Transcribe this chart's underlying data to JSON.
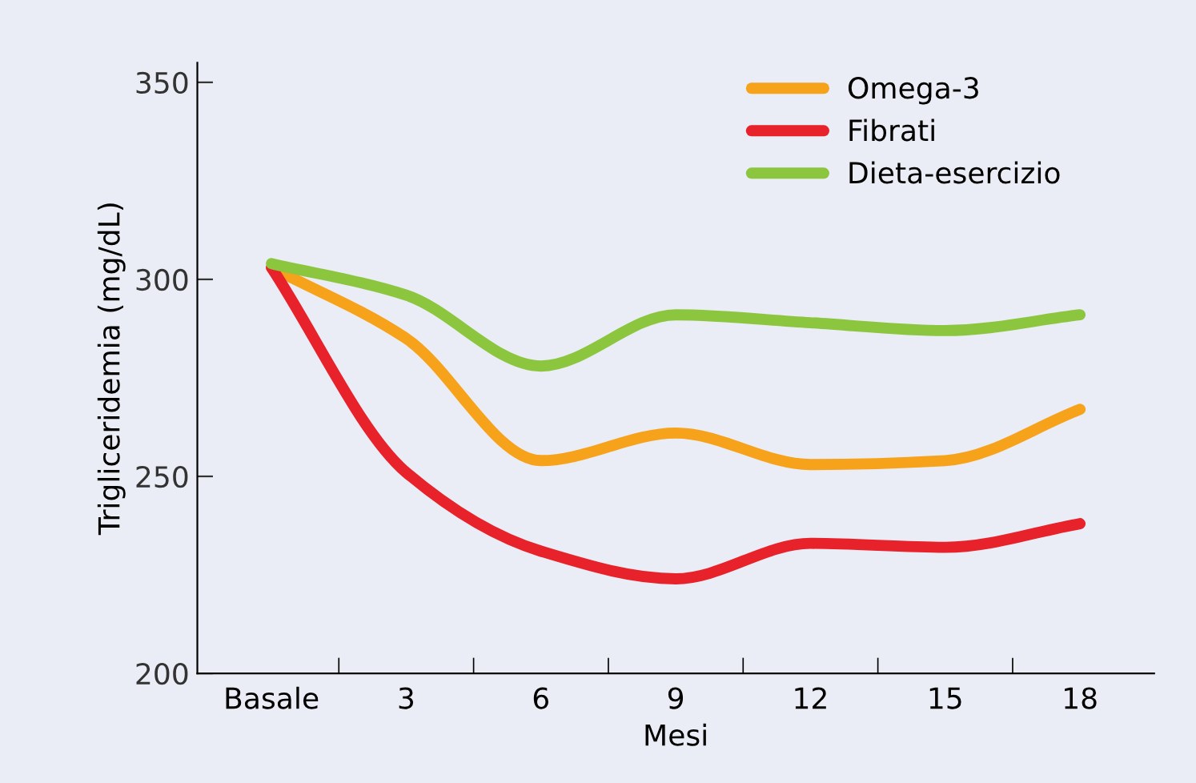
{
  "chart_data": {
    "type": "line",
    "xlabel": "Mesi",
    "ylabel": "Trigliceridemia (mg/dL)",
    "categories": [
      "Basale",
      "3",
      "6",
      "9",
      "12",
      "15",
      "18"
    ],
    "series": [
      {
        "name": "Omega-3",
        "color": "#f7a21b",
        "values": [
          303,
          285,
          254,
          261,
          253,
          254,
          267
        ]
      },
      {
        "name": "Fibrati",
        "color": "#e8222b",
        "values": [
          303,
          251,
          231,
          224,
          233,
          232,
          238
        ]
      },
      {
        "name": "Dieta-esercizio",
        "color": "#8cc63f",
        "values": [
          304,
          296,
          278,
          291,
          289,
          287,
          291
        ]
      }
    ],
    "ylim": [
      200,
      355
    ],
    "yticks": [
      200,
      250,
      300,
      350
    ],
    "grid": false,
    "legend": "top right",
    "marker": "none",
    "line_style": "solid"
  }
}
